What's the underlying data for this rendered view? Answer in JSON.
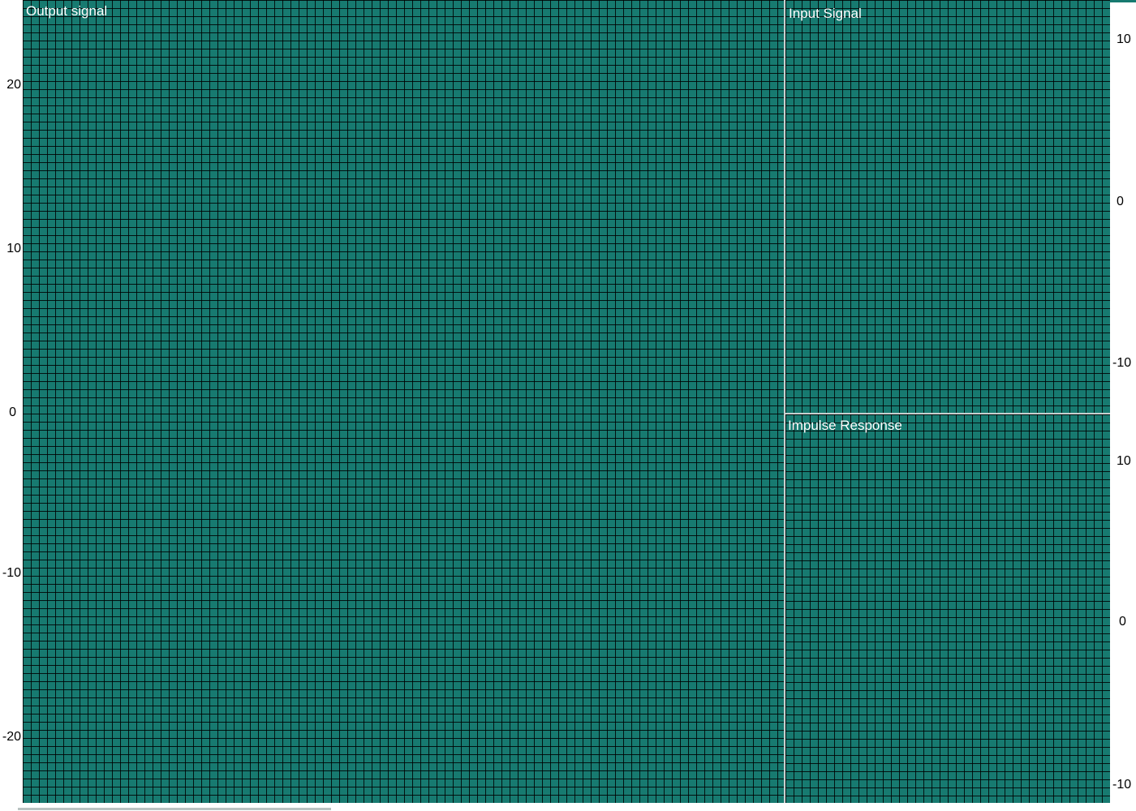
{
  "panels": {
    "output": {
      "title": "Output signal",
      "y_ticks": [
        "20",
        "10",
        "0",
        "-10",
        "-20"
      ]
    },
    "input": {
      "title": "Input Signal",
      "y_ticks": [
        "10",
        "0",
        "-10"
      ]
    },
    "impulse": {
      "title": "Impulse Response",
      "y_ticks": [
        "10",
        "0",
        "-10"
      ]
    }
  },
  "colors": {
    "plot_background": "#177a70",
    "grid_lines": "#000000",
    "panel_divider": "#c8d0cf",
    "title_text": "#ffffff"
  }
}
